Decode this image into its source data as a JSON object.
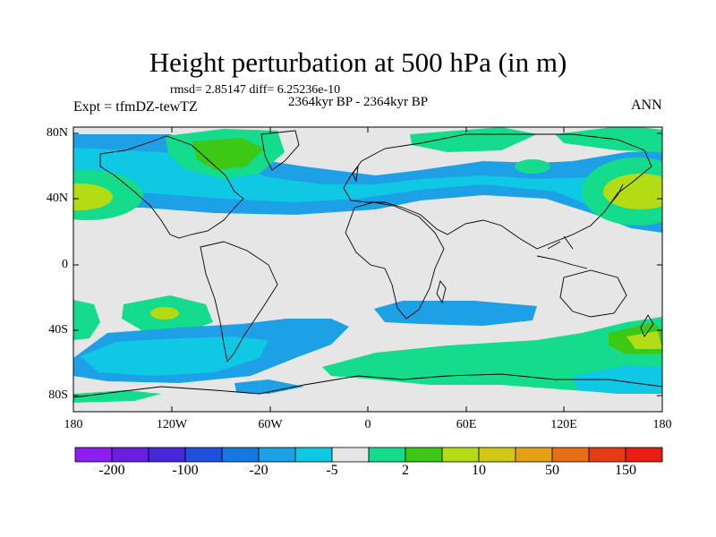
{
  "title": "Height perturbation at 500 hPa (in m)",
  "stats": "rmsd= 2.85147 diff= 6.25236e-10",
  "period": "2364kyr BP - 2364kyr BP",
  "experiment": "Expt = tfmDZ-tewTZ",
  "season": "ANN",
  "axes": {
    "y_ticks": [
      "80N",
      "40N",
      "0",
      "40S",
      "80S"
    ],
    "x_ticks": [
      "180",
      "120W",
      "60W",
      "0",
      "60E",
      "120E",
      "180"
    ]
  },
  "colorbar": {
    "colors": [
      "#8c1ef0",
      "#6a1ee0",
      "#4628d8",
      "#2050dc",
      "#1478e0",
      "#1ea0e6",
      "#0ec8e4",
      "#e6e6e6",
      "#14dc8c",
      "#3cc814",
      "#b4dc14",
      "#d2c814",
      "#e6a014",
      "#e66e14",
      "#e63c14",
      "#e61e14"
    ],
    "labels": [
      "-200",
      "-100",
      "-20",
      "-5",
      "2",
      "10",
      "50",
      "150"
    ]
  },
  "field_colors": {
    "background": "#e6e6e6",
    "blue": "#1ea0e6",
    "cyan": "#0ec8e4",
    "green": "#14dc8c",
    "yellowgreen": "#b4dc14",
    "darkgreen": "#3cc814"
  }
}
